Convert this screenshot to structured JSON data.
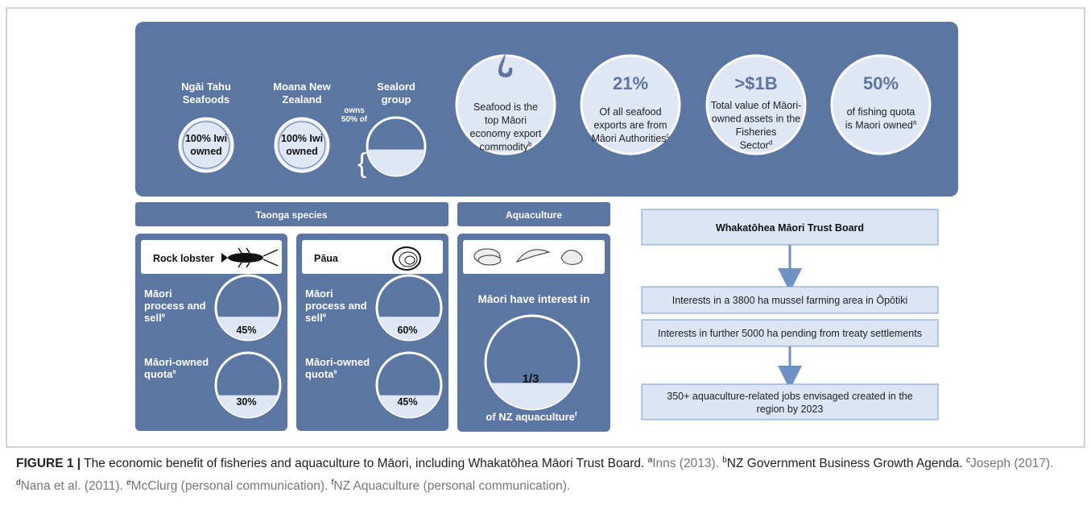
{
  "companies": [
    {
      "name": [
        "Ngāi Tahu",
        "Seafoods"
      ],
      "ownership": [
        "100% Iwi",
        "owned"
      ]
    },
    {
      "name": [
        "Moana New",
        "Zealand"
      ],
      "ownership": [
        "100% Iwi",
        "owned"
      ]
    },
    {
      "name": [
        "Sealord",
        "group"
      ]
    }
  ],
  "owns_note": [
    "owns",
    "50% of"
  ],
  "stats": [
    {
      "lines": [
        "Seafood is the",
        "top Māori",
        "economy export",
        "commodity"
      ],
      "note": "b"
    },
    {
      "headline": "21%",
      "lines": [
        "Of all seafood",
        "exports are from",
        "Māori Authorities"
      ],
      "note": "c"
    },
    {
      "headline": ">$1B",
      "lines": [
        "Total value of Māori-",
        "owned assets in the",
        "Fisheries",
        "Sector"
      ],
      "note": "d"
    },
    {
      "headline": "50%",
      "lines": [
        "of fishing quota",
        "is Maori owned"
      ],
      "note": "a"
    }
  ],
  "taonga": {
    "title": "Taonga species",
    "species": [
      {
        "name": "Rock lobster",
        "process_label": [
          "Māori",
          "process and",
          "sell"
        ],
        "process_note": "e",
        "process_value": "45%",
        "quota_label": [
          "Māori-owned",
          "quota"
        ],
        "quota_note": "e",
        "quota_value": "30%"
      },
      {
        "name": "Pāua",
        "process_label": [
          "Māori",
          "process and",
          "sell"
        ],
        "process_note": "e",
        "process_value": "60%",
        "quota_label": [
          "Māori-owned",
          "quota"
        ],
        "quota_note": "e",
        "quota_value": "45%"
      }
    ]
  },
  "aquaculture": {
    "title": "Aquaculture",
    "top": "Māori have interest in",
    "value": "1/3",
    "bottom": "of NZ aquaculture",
    "note": "f"
  },
  "trust": {
    "title": "Whakatōhea Māori Trust Board",
    "items": [
      "Interests in a 3800 ha mussel farming area in Ōpōtiki",
      "Interests in further 5000 ha pending from treaty settlements"
    ],
    "outcome": [
      "350+ aquaculture-related jobs envisaged created in the",
      "region by 2023"
    ]
  },
  "caption": {
    "label": "FIGURE 1 |",
    "text": "The economic benefit of fisheries and aquaculture to Māori, including Whakatōhea Māori Trust Board.",
    "refs": [
      {
        "mark": "a",
        "text": "Inns (2013)."
      },
      {
        "mark": "b",
        "text": "NZ Government Business Growth Agenda."
      },
      {
        "mark": "c",
        "text": "Joseph (2017)."
      },
      {
        "mark": "d",
        "text": "Nana et al. (2011)."
      },
      {
        "mark": "e",
        "text": "McClurg (personal communication)."
      },
      {
        "mark": "f",
        "text": "NZ Aquaculture (personal communication)."
      }
    ]
  }
}
